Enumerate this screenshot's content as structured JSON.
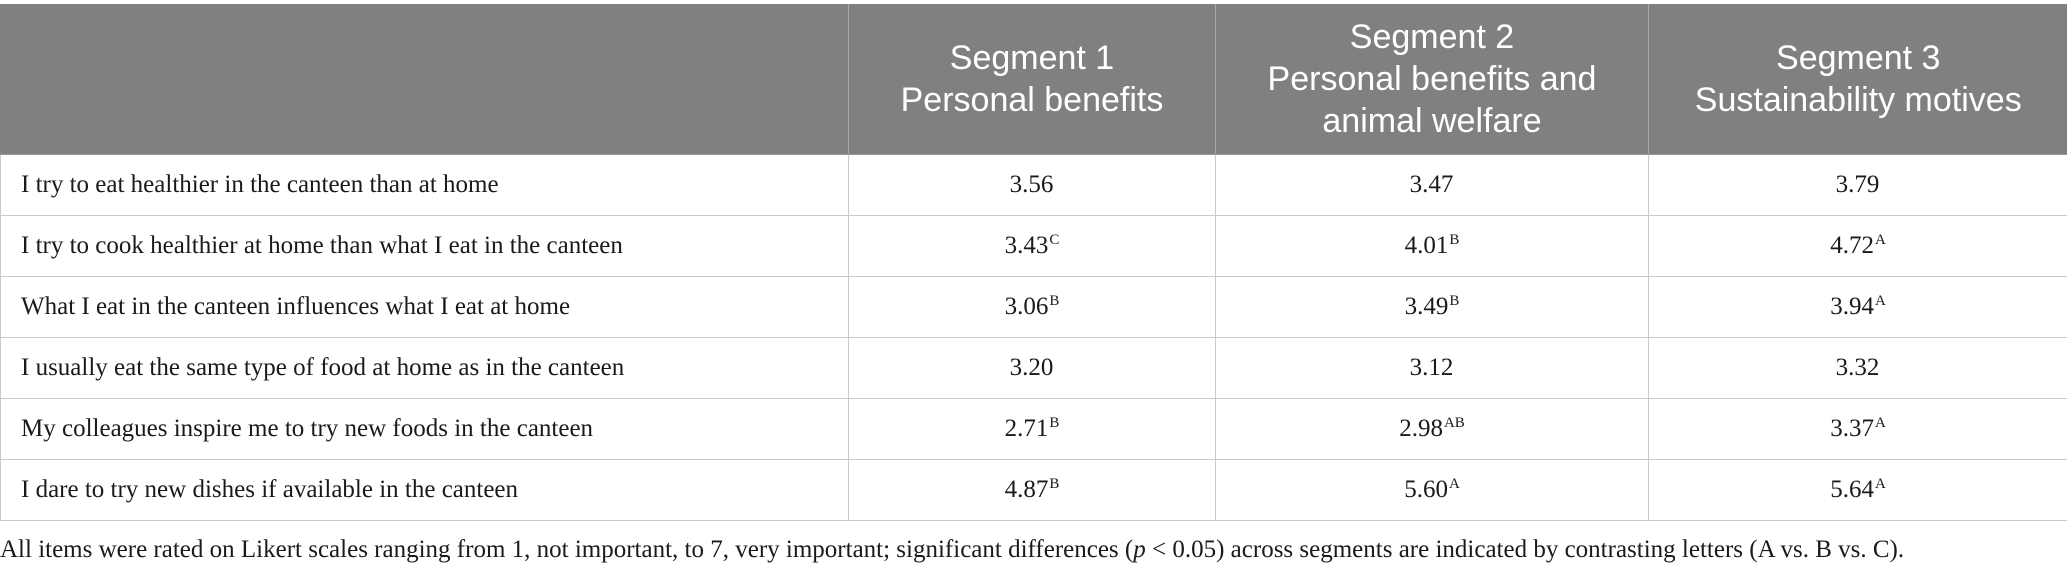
{
  "table": {
    "headers": [
      {
        "lines": [
          ""
        ]
      },
      {
        "lines": [
          "Segment 1",
          "Personal benefits"
        ]
      },
      {
        "lines": [
          "Segment 2",
          "Personal benefits and",
          "animal welfare"
        ]
      },
      {
        "lines": [
          "Segment 3",
          "Sustainability motives"
        ]
      }
    ],
    "rows": [
      {
        "label": "I try to eat healthier in the canteen than at home",
        "cells": [
          {
            "value": "3.56",
            "sup": ""
          },
          {
            "value": "3.47",
            "sup": ""
          },
          {
            "value": "3.79",
            "sup": ""
          }
        ]
      },
      {
        "label": "I try to cook healthier at home than what I eat in the canteen",
        "cells": [
          {
            "value": "3.43",
            "sup": "C"
          },
          {
            "value": "4.01",
            "sup": "B"
          },
          {
            "value": "4.72",
            "sup": "A"
          }
        ]
      },
      {
        "label": "What I eat in the canteen influences what I eat at home",
        "cells": [
          {
            "value": "3.06",
            "sup": "B"
          },
          {
            "value": "3.49",
            "sup": "B"
          },
          {
            "value": "3.94",
            "sup": "A"
          }
        ]
      },
      {
        "label": "I usually eat the same type of food at home as in the canteen",
        "cells": [
          {
            "value": "3.20",
            "sup": ""
          },
          {
            "value": "3.12",
            "sup": ""
          },
          {
            "value": "3.32",
            "sup": ""
          }
        ]
      },
      {
        "label": "My colleagues inspire me to try new foods in the canteen",
        "cells": [
          {
            "value": "2.71",
            "sup": "B"
          },
          {
            "value": "2.98",
            "sup": "AB"
          },
          {
            "value": "3.37",
            "sup": "A"
          }
        ]
      },
      {
        "label": "I dare to try new dishes if available in the canteen",
        "cells": [
          {
            "value": "4.87",
            "sup": "B"
          },
          {
            "value": "5.60",
            "sup": "A"
          },
          {
            "value": "5.64",
            "sup": "A"
          }
        ]
      }
    ]
  },
  "footnote": {
    "before": "All items were rated on Likert scales ranging from 1, not important, to 7, very important; significant differences (",
    "italic": "p",
    "after": " < 0.05) across segments are indicated by contrasting letters (A vs. B vs. C)."
  }
}
